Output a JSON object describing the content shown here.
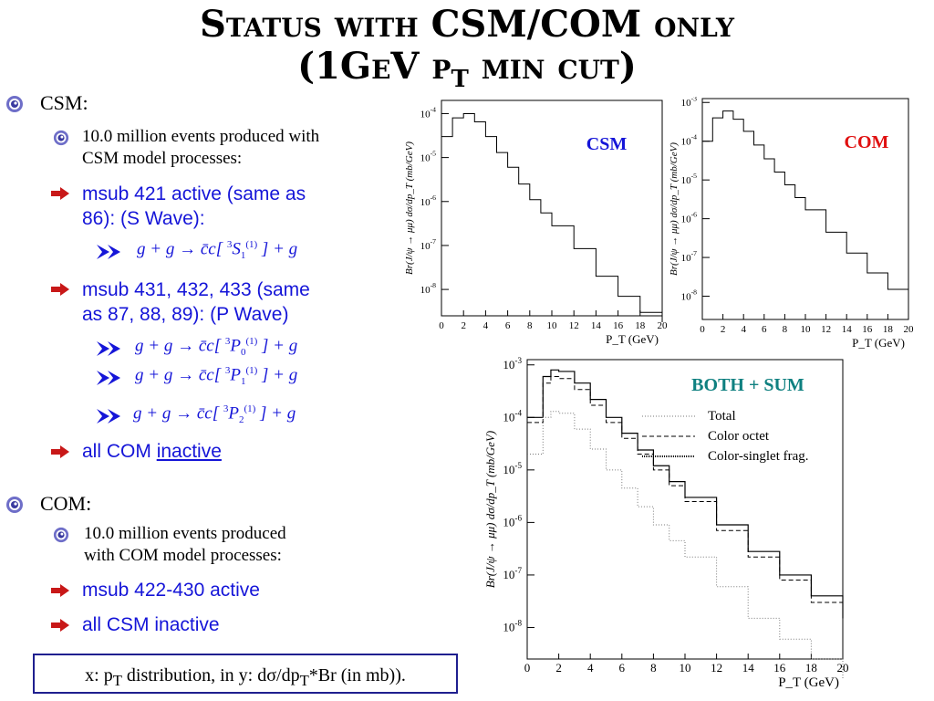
{
  "title": {
    "line1": "Status with CSM/COM only",
    "line2_pre": "(1GeV p",
    "line2_sub": "T",
    "line2_post": " min cut)"
  },
  "csm": {
    "heading": "CSM:",
    "events_line1": "10.0 million events produced with",
    "events_line2": "CSM model processes:",
    "msub421_line1": "msub 421 active (same as",
    "msub421_line2": "86): (S Wave):",
    "msub431_line1": "msub 431, 432, 433 (same",
    "msub431_line2": "as 87, 88, 89): (P Wave)",
    "com_pre": "all COM ",
    "com_inactive": "inactive"
  },
  "com": {
    "heading": "COM:",
    "events_line1": "10.0 million events produced",
    "events_line2": "with COM model processes:",
    "msub": "msub 422-430 active",
    "csm_inactive": "all CSM inactive"
  },
  "footer": {
    "pre": "x: p",
    "sub1": "T",
    "mid": " distribution, in y: dσ/dp",
    "sub2": "T",
    "post": "*Br (in mb))."
  },
  "colors": {
    "blue_text": "#1515d8",
    "csm_label": "#1515d8",
    "com_label": "#e01010",
    "both_label": "#0f8080",
    "footer_border": "#1f1f8f"
  },
  "chart_data": [
    {
      "type": "line",
      "title": "CSM",
      "xlabel": "P_T (GeV)",
      "ylabel": "Br(J/ψ → μμ) dσ/dp_T (mb/GeV)",
      "log_y": true,
      "xlim": [
        0,
        20
      ],
      "x_ticks": [
        "0",
        "2",
        "4",
        "6",
        "8",
        "10",
        "12",
        "14",
        "16",
        "18",
        "20"
      ],
      "y_ticks": [
        "10^-4",
        "10^-5",
        "10^-6",
        "10^-7",
        "10^-8"
      ],
      "x": [
        0,
        1,
        2,
        3,
        4,
        5,
        6,
        7,
        8,
        9,
        10,
        12,
        14,
        16,
        18,
        20
      ],
      "values": [
        3e-05,
        8e-05,
        0.0001,
        6.5e-05,
        3e-05,
        1.3e-05,
        6e-06,
        2.5e-06,
        1.1e-06,
        5.5e-07,
        2.8e-07,
        8.5e-08,
        2e-08,
        7e-09,
        3e-09,
        1.8e-09
      ]
    },
    {
      "type": "line",
      "title": "COM",
      "xlabel": "P_T (GeV)",
      "ylabel": "Br(J/ψ → μμ) dσ/dp_T (mb/GeV)",
      "log_y": true,
      "xlim": [
        0,
        20
      ],
      "x_ticks": [
        "0",
        "2",
        "4",
        "6",
        "8",
        "10",
        "12",
        "14",
        "16",
        "18",
        "20"
      ],
      "y_ticks": [
        "10^-3",
        "10^-4",
        "10^-5",
        "10^-6",
        "10^-7",
        "10^-8"
      ],
      "x": [
        0,
        1,
        2,
        3,
        4,
        5,
        6,
        7,
        8,
        9,
        10,
        12,
        14,
        16,
        18,
        20
      ],
      "values": [
        0.0001,
        0.0004,
        0.0006,
        0.00037,
        0.00018,
        8e-05,
        3.5e-05,
        1.6e-05,
        7.5e-06,
        3.5e-06,
        1.7e-06,
        4.5e-07,
        1.3e-07,
        4e-08,
        1.5e-08,
        6e-09
      ]
    },
    {
      "type": "line",
      "title": "BOTH + SUM",
      "xlabel": "P_T (GeV)",
      "ylabel": "Br(J/ψ → μμ) dσ/dp_T (mb/GeV)",
      "log_y": true,
      "xlim": [
        0,
        20
      ],
      "x_ticks": [
        "0",
        "2",
        "4",
        "6",
        "8",
        "10",
        "12",
        "14",
        "16",
        "18",
        "20"
      ],
      "y_ticks": [
        "10^-3",
        "10^-4",
        "10^-5",
        "10^-6",
        "10^-7",
        "10^-8"
      ],
      "legend": [
        "Total",
        "Color octet",
        "Color-singlet frag."
      ],
      "x": [
        0,
        1,
        1.5,
        2,
        3,
        4,
        5,
        6,
        7,
        8,
        9,
        10,
        12,
        14,
        16,
        18,
        20
      ],
      "series": [
        {
          "name": "Total",
          "values": [
            0.0001,
            0.0006,
            0.0008,
            0.00075,
            0.00045,
            0.00022,
            0.0001,
            5e-05,
            2.4e-05,
            1.2e-05,
            6e-06,
            3e-06,
            9e-07,
            2.8e-07,
            1e-07,
            4e-08,
            1.5e-08
          ]
        },
        {
          "name": "Color octet",
          "values": [
            8e-05,
            0.00045,
            0.0006,
            0.00055,
            0.00034,
            0.00017,
            8e-05,
            4e-05,
            2e-05,
            1e-05,
            5e-06,
            2.5e-06,
            7e-07,
            2.2e-07,
            8e-08,
            3e-08,
            1.2e-08
          ]
        },
        {
          "name": "Color-singlet frag.",
          "values": [
            2e-05,
            0.0001,
            0.00013,
            0.00012,
            6e-05,
            2.5e-05,
            1e-05,
            4.5e-06,
            2e-06,
            9e-07,
            4.5e-07,
            2.2e-07,
            6e-08,
            1.5e-08,
            6e-09,
            2.5e-09,
            1e-09
          ]
        }
      ]
    }
  ]
}
